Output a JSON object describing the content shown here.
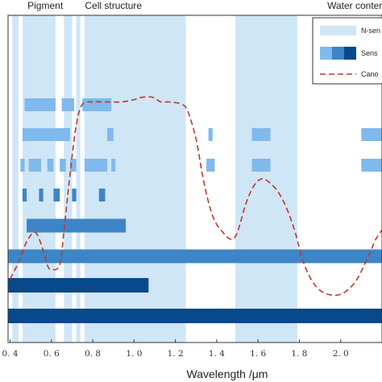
{
  "chart_data": {
    "type": "bar",
    "xlabel": "Wavelength /μm",
    "xlim": [
      0.39,
      2.2
    ],
    "xticks": [
      {
        "value": 0.4,
        "label": "0. 4"
      },
      {
        "value": 0.6,
        "label": "0. 6"
      },
      {
        "value": 0.8,
        "label": "0. 8"
      },
      {
        "value": 1.0,
        "label": "1. 0"
      },
      {
        "value": 1.2,
        "label": "1. 2"
      },
      {
        "value": 1.4,
        "label": "1. 4"
      },
      {
        "value": 1.6,
        "label": "1. 6"
      },
      {
        "value": 1.8,
        "label": "1. 8"
      },
      {
        "value": 2.0,
        "label": "2. 0"
      }
    ],
    "region_labels": [
      {
        "text": "Pigment",
        "x": 0.57
      },
      {
        "text": "Cell structure",
        "x": 0.9
      },
      {
        "text": "Water content",
        "x": 2.08
      }
    ],
    "colors": {
      "n_sensitive": "#cfe6f7",
      "sensor_light": "#80b9ec",
      "sensor_medium": "#3d85c6",
      "sensor_dark": "#07498a",
      "canopy": "#c0392b"
    },
    "sensitive_bands": [
      [
        0.41,
        0.44
      ],
      [
        0.46,
        0.62
      ],
      [
        0.66,
        0.7
      ],
      [
        0.72,
        0.74
      ],
      [
        0.76,
        1.25
      ],
      [
        1.49,
        1.79
      ]
    ],
    "sensor_rows": [
      {
        "level": "light",
        "segments": [
          [
            0.47,
            0.62
          ],
          [
            0.65,
            0.71
          ],
          [
            0.75,
            0.89
          ]
        ]
      },
      {
        "level": "light",
        "segments": [
          [
            0.46,
            0.69
          ],
          [
            0.87,
            0.9
          ],
          [
            1.36,
            1.38
          ],
          [
            1.57,
            1.66
          ],
          [
            2.1,
            2.2
          ]
        ]
      },
      {
        "level": "light",
        "segments": [
          [
            0.45,
            0.47
          ],
          [
            0.49,
            0.55
          ],
          [
            0.58,
            0.61
          ],
          [
            0.64,
            0.67
          ],
          [
            0.69,
            0.72
          ],
          [
            0.76,
            0.87
          ],
          [
            0.89,
            0.91
          ],
          [
            1.35,
            1.39
          ],
          [
            1.57,
            1.66
          ],
          [
            2.1,
            2.2
          ]
        ]
      },
      {
        "level": "medium",
        "segments": [
          [
            0.46,
            0.48
          ],
          [
            0.54,
            0.56
          ],
          [
            0.61,
            0.64
          ],
          [
            0.7,
            0.72
          ],
          [
            0.83,
            0.86
          ]
        ]
      },
      {
        "level": "medium",
        "segments": [
          [
            0.48,
            0.96
          ]
        ]
      },
      {
        "level": "medium",
        "segments": [
          [
            0.39,
            2.2
          ]
        ]
      },
      {
        "level": "dark",
        "segments": [
          [
            0.39,
            1.07
          ]
        ]
      },
      {
        "level": "dark",
        "segments": [
          [
            0.39,
            2.2
          ]
        ]
      }
    ],
    "canopy_curve": [
      [
        0.4,
        0.1
      ],
      [
        0.44,
        0.17
      ],
      [
        0.48,
        0.26
      ],
      [
        0.52,
        0.3
      ],
      [
        0.55,
        0.25
      ],
      [
        0.58,
        0.16
      ],
      [
        0.6,
        0.14
      ],
      [
        0.64,
        0.16
      ],
      [
        0.66,
        0.3
      ],
      [
        0.69,
        0.55
      ],
      [
        0.72,
        0.76
      ],
      [
        0.75,
        0.85
      ],
      [
        0.8,
        0.86
      ],
      [
        0.88,
        0.86
      ],
      [
        0.94,
        0.86
      ],
      [
        1.0,
        0.87
      ],
      [
        1.04,
        0.88
      ],
      [
        1.09,
        0.88
      ],
      [
        1.13,
        0.86
      ],
      [
        1.17,
        0.86
      ],
      [
        1.23,
        0.85
      ],
      [
        1.26,
        0.82
      ],
      [
        1.3,
        0.7
      ],
      [
        1.33,
        0.55
      ],
      [
        1.36,
        0.43
      ],
      [
        1.39,
        0.35
      ],
      [
        1.43,
        0.3
      ],
      [
        1.47,
        0.27
      ],
      [
        1.5,
        0.3
      ],
      [
        1.54,
        0.42
      ],
      [
        1.58,
        0.5
      ],
      [
        1.62,
        0.53
      ],
      [
        1.66,
        0.51
      ],
      [
        1.7,
        0.47
      ],
      [
        1.74,
        0.4
      ],
      [
        1.78,
        0.3
      ],
      [
        1.82,
        0.17
      ],
      [
        1.87,
        0.08
      ],
      [
        1.92,
        0.04
      ],
      [
        1.98,
        0.03
      ],
      [
        2.03,
        0.05
      ],
      [
        2.08,
        0.1
      ],
      [
        2.13,
        0.19
      ],
      [
        2.17,
        0.27
      ],
      [
        2.2,
        0.31
      ]
    ],
    "legend": {
      "placement": "top-right",
      "entries": [
        {
          "type": "patch",
          "label": "N-sen"
        },
        {
          "type": "patch3",
          "label": "Sens"
        },
        {
          "type": "line",
          "label": "Cano"
        }
      ]
    }
  }
}
